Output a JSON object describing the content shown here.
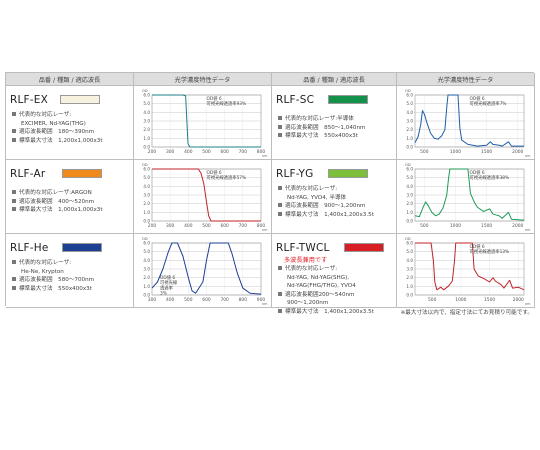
{
  "headers": {
    "name": "品番 / 種類 / 適応波長",
    "chart": "光学濃度特性データ"
  },
  "products": [
    {
      "name": "RLF-EX",
      "color": "#f6f2df",
      "specs": [
        "代表的な対応レーザ:",
        "EXCIMER, Nd-YAG(THG)",
        "適応波長範囲　180〜390nm",
        "標準最大寸法　1,200x1,000x3t"
      ],
      "chart_note": "OD値 6\n可視光線透過率93%",
      "chart_data": {
        "type": "line",
        "line_color": "#1c7f86",
        "x_ticks": [
          200,
          300,
          400,
          500,
          600,
          700,
          800
        ],
        "y_ticks": [
          "0.0",
          "1.0",
          "2.0",
          "3.0",
          "4.0",
          "5.0",
          "6.0"
        ],
        "xlim": [
          200,
          800
        ],
        "ylim": [
          0,
          6
        ],
        "points": [
          [
            200,
            6
          ],
          [
            370,
            6
          ],
          [
            385,
            5.9
          ],
          [
            392,
            3
          ],
          [
            398,
            0.4
          ],
          [
            408,
            0
          ],
          [
            800,
            0
          ]
        ]
      }
    },
    {
      "name": "RLF-SC",
      "color": "#14914a",
      "specs": [
        "代表的な対応レーザ:半導体",
        "適応波長範囲　850〜1,040nm",
        "標準最大寸法　550x400x3t"
      ],
      "chart_note": "OD値 6\n可視光線透過率7%",
      "chart_data": {
        "type": "line",
        "line_color": "#1d5ea8",
        "x_ticks": [
          500,
          1000,
          1500,
          2000
        ],
        "y_ticks": [
          "0.0",
          "1.0",
          "2.0",
          "3.0",
          "4.0",
          "5.0",
          "6.0"
        ],
        "xlim": [
          350,
          2100
        ],
        "ylim": [
          0,
          6
        ],
        "points": [
          [
            350,
            0.5
          ],
          [
            400,
            1.2
          ],
          [
            440,
            2.5
          ],
          [
            470,
            4.2
          ],
          [
            500,
            3.8
          ],
          [
            550,
            2.6
          ],
          [
            600,
            1.6
          ],
          [
            660,
            1.0
          ],
          [
            720,
            0.9
          ],
          [
            780,
            1.3
          ],
          [
            830,
            2.0
          ],
          [
            860,
            4.6
          ],
          [
            880,
            6
          ],
          [
            1000,
            6
          ],
          [
            1040,
            6
          ],
          [
            1070,
            2.2
          ],
          [
            1100,
            0.8
          ],
          [
            1200,
            0.3
          ],
          [
            1350,
            0.1
          ],
          [
            1500,
            0.2
          ],
          [
            1560,
            0.6
          ],
          [
            1600,
            0.3
          ],
          [
            1700,
            0.2
          ],
          [
            1750,
            0.1
          ],
          [
            1850,
            0.6
          ],
          [
            1900,
            0.1
          ],
          [
            2100,
            0.1
          ]
        ]
      }
    },
    {
      "name": "RLF-Ar",
      "color": "#f08a1c",
      "specs": [
        "代表的な対応レーザ:ARGON",
        "適応波長範囲　400〜520nm",
        "標準最大寸法　1,000x1,000x3t"
      ],
      "chart_note": "OD値 6\n可視光線透過率57%",
      "chart_data": {
        "type": "line",
        "line_color": "#c1232a",
        "x_ticks": [
          200,
          300,
          400,
          500,
          600,
          700,
          800
        ],
        "y_ticks": [
          "0.0",
          "1.0",
          "2.0",
          "3.0",
          "4.0",
          "5.0",
          "6.0"
        ],
        "xlim": [
          200,
          800
        ],
        "ylim": [
          0,
          6
        ],
        "points": [
          [
            200,
            6
          ],
          [
            455,
            6
          ],
          [
            470,
            5.5
          ],
          [
            485,
            4.3
          ],
          [
            500,
            2.2
          ],
          [
            512,
            0.6
          ],
          [
            525,
            0
          ],
          [
            800,
            0
          ]
        ]
      }
    },
    {
      "name": "RLF-YG",
      "color": "#7cbf3a",
      "specs": [
        "代表的な対応レーザ:",
        "Nd-YAG, YVO4, 半導体",
        "適応波長範囲　900〜1,200nm",
        "標準最大寸法　1,400x1,200x3.5t"
      ],
      "chart_note": "OD値 6\n可視光線透過率38%",
      "chart_data": {
        "type": "line",
        "line_color": "#1d9a56",
        "x_ticks": [
          500,
          1000,
          1500,
          2000
        ],
        "y_ticks": [
          "0.0",
          "1.0",
          "2.0",
          "3.0",
          "4.0",
          "5.0",
          "6.0"
        ],
        "xlim": [
          350,
          2100
        ],
        "ylim": [
          0,
          6
        ],
        "points": [
          [
            350,
            0.6
          ],
          [
            420,
            0.5
          ],
          [
            480,
            1.6
          ],
          [
            520,
            2.2
          ],
          [
            560,
            1.8
          ],
          [
            620,
            1.0
          ],
          [
            680,
            0.6
          ],
          [
            740,
            0.8
          ],
          [
            800,
            1.5
          ],
          [
            860,
            3.0
          ],
          [
            890,
            5.0
          ],
          [
            910,
            6
          ],
          [
            1200,
            6
          ],
          [
            1240,
            3.2
          ],
          [
            1300,
            2.2
          ],
          [
            1350,
            1.6
          ],
          [
            1450,
            1.1
          ],
          [
            1550,
            1.4
          ],
          [
            1600,
            0.8
          ],
          [
            1700,
            0.6
          ],
          [
            1750,
            0.3
          ],
          [
            1850,
            1.0
          ],
          [
            1900,
            0.2
          ],
          [
            2100,
            0.1
          ]
        ]
      }
    },
    {
      "name": "RLF-He",
      "color": "#1d3f94",
      "specs": [
        "代表的な対応レーザ:",
        "He-Ne, Krypton",
        "適応波長範囲　580〜700nm",
        "標準最大寸法　550x400x3t"
      ],
      "chart_note": "OD値 6\n可視光線\n透過率\n3%",
      "chart_data": {
        "type": "line",
        "line_color": "#1d3f94",
        "x_ticks": [
          300,
          400,
          500,
          600,
          700,
          800,
          900
        ],
        "y_ticks": [
          "0.0",
          "1.0",
          "2.0",
          "3.0",
          "4.0",
          "5.0",
          "6.0"
        ],
        "xlim": [
          300,
          900
        ],
        "ylim": [
          0,
          6
        ],
        "points": [
          [
            300,
            0.8
          ],
          [
            330,
            1.5
          ],
          [
            360,
            3.0
          ],
          [
            390,
            5.0
          ],
          [
            410,
            6
          ],
          [
            440,
            6
          ],
          [
            470,
            4.5
          ],
          [
            500,
            2.0
          ],
          [
            520,
            0.5
          ],
          [
            540,
            0.2
          ],
          [
            580,
            1.5
          ],
          [
            600,
            4.0
          ],
          [
            620,
            6
          ],
          [
            720,
            6
          ],
          [
            740,
            4.8
          ],
          [
            770,
            2.5
          ],
          [
            800,
            0.8
          ],
          [
            840,
            0.2
          ],
          [
            900,
            0.1
          ]
        ]
      }
    },
    {
      "name": "RLF-TWCL",
      "color": "#d81f26",
      "note": "多波長兼用です",
      "specs": [
        "代表的な対応レーザ:",
        "Nd-YAG, Nd-YAG(SHG),",
        "Nd-YAG(FHG/THG), YVO4",
        "適応波長範囲200〜540nm",
        "900〜1,200nm",
        "標準最大寸法　1,400x1,200x3.5t"
      ],
      "chart_note": "OD値 6\n可視光線透過率13%",
      "chart_data": {
        "type": "line",
        "line_color": "#c1232a",
        "x_ticks": [
          500,
          1000,
          1500,
          2000
        ],
        "y_ticks": [
          "0.0",
          "1.0",
          "2.0",
          "3.0",
          "4.0",
          "5.0",
          "6.0"
        ],
        "xlim": [
          200,
          2100
        ],
        "ylim": [
          0,
          6
        ],
        "points": [
          [
            200,
            6
          ],
          [
            480,
            6
          ],
          [
            520,
            4.0
          ],
          [
            545,
            1.5
          ],
          [
            580,
            0.6
          ],
          [
            650,
            0.9
          ],
          [
            700,
            0.6
          ],
          [
            780,
            1.0
          ],
          [
            850,
            1.6
          ],
          [
            890,
            4.0
          ],
          [
            910,
            6
          ],
          [
            1200,
            6
          ],
          [
            1230,
            3.0
          ],
          [
            1300,
            2.2
          ],
          [
            1400,
            1.9
          ],
          [
            1500,
            1.5
          ],
          [
            1560,
            2.0
          ],
          [
            1600,
            1.6
          ],
          [
            1700,
            1.2
          ],
          [
            1750,
            0.8
          ],
          [
            1850,
            1.7
          ],
          [
            1900,
            0.8
          ],
          [
            2000,
            0.9
          ],
          [
            2100,
            0.6
          ]
        ]
      }
    }
  ],
  "footnote": "※最大寸法以内で、指定寸法にてお見積り可能です。"
}
